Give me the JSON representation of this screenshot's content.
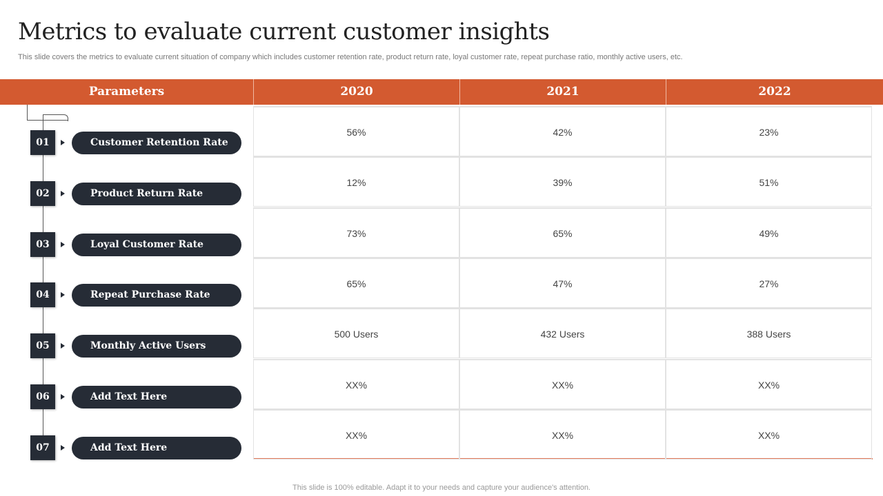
{
  "title": "Metrics to evaluate current customer insights",
  "subtitle": "This slide covers the metrics to evaluate current situation of company which includes customer retention rate, product return rate, loyal customer rate, repeat purchase ratio, monthly active users, etc.",
  "header": {
    "param": "Parameters",
    "years": [
      "2020",
      "2021",
      "2022"
    ]
  },
  "rows": [
    {
      "num": "01",
      "label": "Customer Retention Rate",
      "values": [
        "56%",
        "42%",
        "23%"
      ]
    },
    {
      "num": "02",
      "label": "Product Return Rate",
      "values": [
        "12%",
        "39%",
        "51%"
      ]
    },
    {
      "num": "03",
      "label": "Loyal Customer Rate",
      "values": [
        "73%",
        "65%",
        "49%"
      ]
    },
    {
      "num": "04",
      "label": "Repeat Purchase Rate",
      "values": [
        "65%",
        "47%",
        "27%"
      ]
    },
    {
      "num": "05",
      "label": "Monthly Active Users",
      "values": [
        "500 Users",
        "432 Users",
        "388 Users"
      ]
    },
    {
      "num": "06",
      "label": "Add Text Here",
      "values": [
        "XX%",
        "XX%",
        "XX%"
      ]
    },
    {
      "num": "07",
      "label": "Add Text Here",
      "values": [
        "XX%",
        "XX%",
        "XX%"
      ]
    }
  ],
  "footer": "This slide is 100% editable. Adapt it to your needs and capture your audience's attention.",
  "colors": {
    "accent": "#D35A30",
    "dark": "#262C36"
  }
}
